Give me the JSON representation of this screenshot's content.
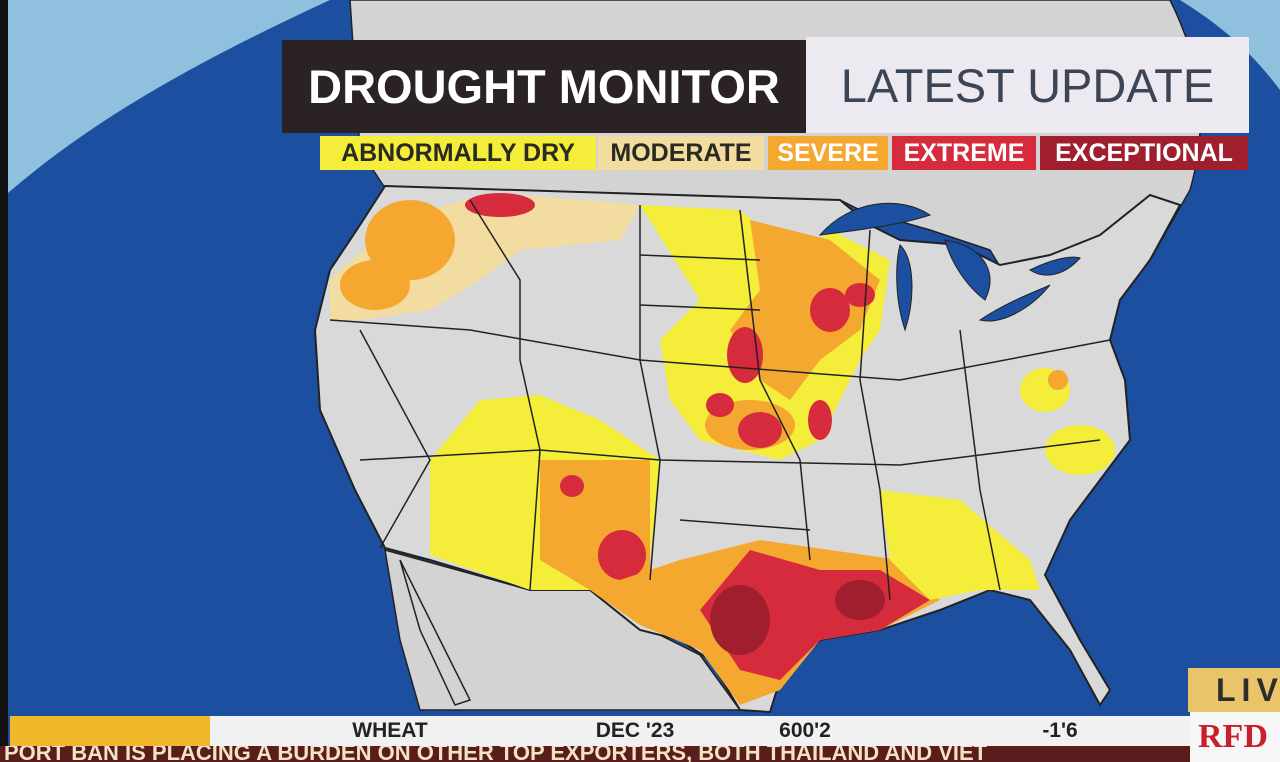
{
  "header": {
    "title": "DROUGHT MONITOR",
    "subtitle": "LATEST UPDATE"
  },
  "legend": [
    {
      "label": "ABNORMALLY DRY",
      "color": "#f4ee3a"
    },
    {
      "label": "MODERATE",
      "color": "#f2dca0"
    },
    {
      "label": "SEVERE",
      "color": "#f5a830"
    },
    {
      "label": "EXTREME",
      "color": "#d62b3c"
    },
    {
      "label": "EXCEPTIONAL",
      "color": "#a01f2e"
    }
  ],
  "ticker": {
    "commodity": "WHEAT",
    "contract": "DEC '23",
    "price": "600'2",
    "change": "-1'6"
  },
  "crawl": "PORT BAN IS PLACING A BURDEN ON OTHER TOP EXPORTERS, BOTH THAILAND AND VIET",
  "live": "LIV",
  "logo": "RFD"
}
